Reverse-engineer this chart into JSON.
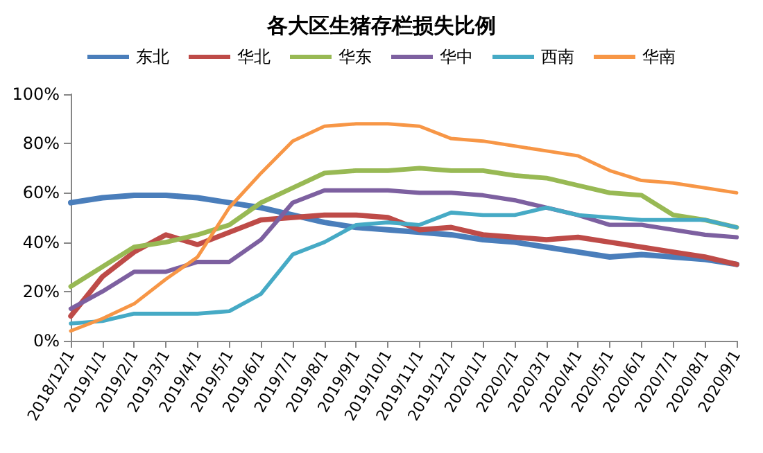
{
  "chart_data": {
    "type": "line",
    "title": "各大区生猪存栏损失比例",
    "categories": [
      "2018/12/1",
      "2019/1/1",
      "2019/2/1",
      "2019/3/1",
      "2019/4/1",
      "2019/5/1",
      "2019/6/1",
      "2019/7/1",
      "2019/8/1",
      "2019/9/1",
      "2019/10/1",
      "2019/11/1",
      "2019/12/1",
      "2020/1/1",
      "2020/2/1",
      "2020/3/1",
      "2020/4/1",
      "2020/5/1",
      "2020/6/1",
      "2020/7/1",
      "2020/8/1",
      "2020/9/1"
    ],
    "series": [
      {
        "name": "东北",
        "color": "#4a7ebb",
        "values": [
          56,
          58,
          59,
          59,
          58,
          56,
          54,
          51,
          48,
          46,
          45,
          44,
          43,
          41,
          40,
          38,
          36,
          34,
          35,
          34,
          33,
          31
        ]
      },
      {
        "name": "华北",
        "color": "#be4b48",
        "values": [
          10,
          26,
          36,
          43,
          39,
          44,
          49,
          50,
          51,
          51,
          50,
          45,
          46,
          43,
          42,
          41,
          42,
          40,
          38,
          36,
          34,
          31
        ]
      },
      {
        "name": "华东",
        "color": "#98b954",
        "values": [
          22,
          30,
          38,
          40,
          43,
          47,
          56,
          62,
          68,
          69,
          69,
          70,
          69,
          69,
          67,
          66,
          63,
          60,
          59,
          51,
          49,
          46
        ]
      },
      {
        "name": "华中",
        "color": "#7d60a0",
        "values": [
          13,
          20,
          28,
          28,
          32,
          32,
          41,
          56,
          61,
          61,
          61,
          60,
          60,
          59,
          57,
          54,
          51,
          47,
          47,
          45,
          43,
          42
        ]
      },
      {
        "name": "西南",
        "color": "#46aac5",
        "values": [
          7,
          8,
          11,
          11,
          11,
          12,
          19,
          35,
          40,
          47,
          48,
          47,
          52,
          51,
          51,
          54,
          51,
          50,
          49,
          49,
          49,
          46
        ]
      },
      {
        "name": "华南",
        "color": "#f79646",
        "values": [
          4,
          9,
          15,
          25,
          34,
          54,
          68,
          81,
          87,
          88,
          88,
          87,
          82,
          81,
          79,
          77,
          75,
          69,
          65,
          64,
          62,
          60
        ]
      }
    ],
    "ylim": [
      0,
      100
    ],
    "yticks": [
      {
        "value": 0,
        "label": "0%"
      },
      {
        "value": 20,
        "label": "20%"
      },
      {
        "value": 40,
        "label": "40%"
      },
      {
        "value": 60,
        "label": "60%"
      },
      {
        "value": 80,
        "label": "80%"
      },
      {
        "value": 100,
        "label": "100%"
      }
    ],
    "grid": false,
    "legend": "top",
    "marker": "none",
    "line_style": "solid"
  }
}
